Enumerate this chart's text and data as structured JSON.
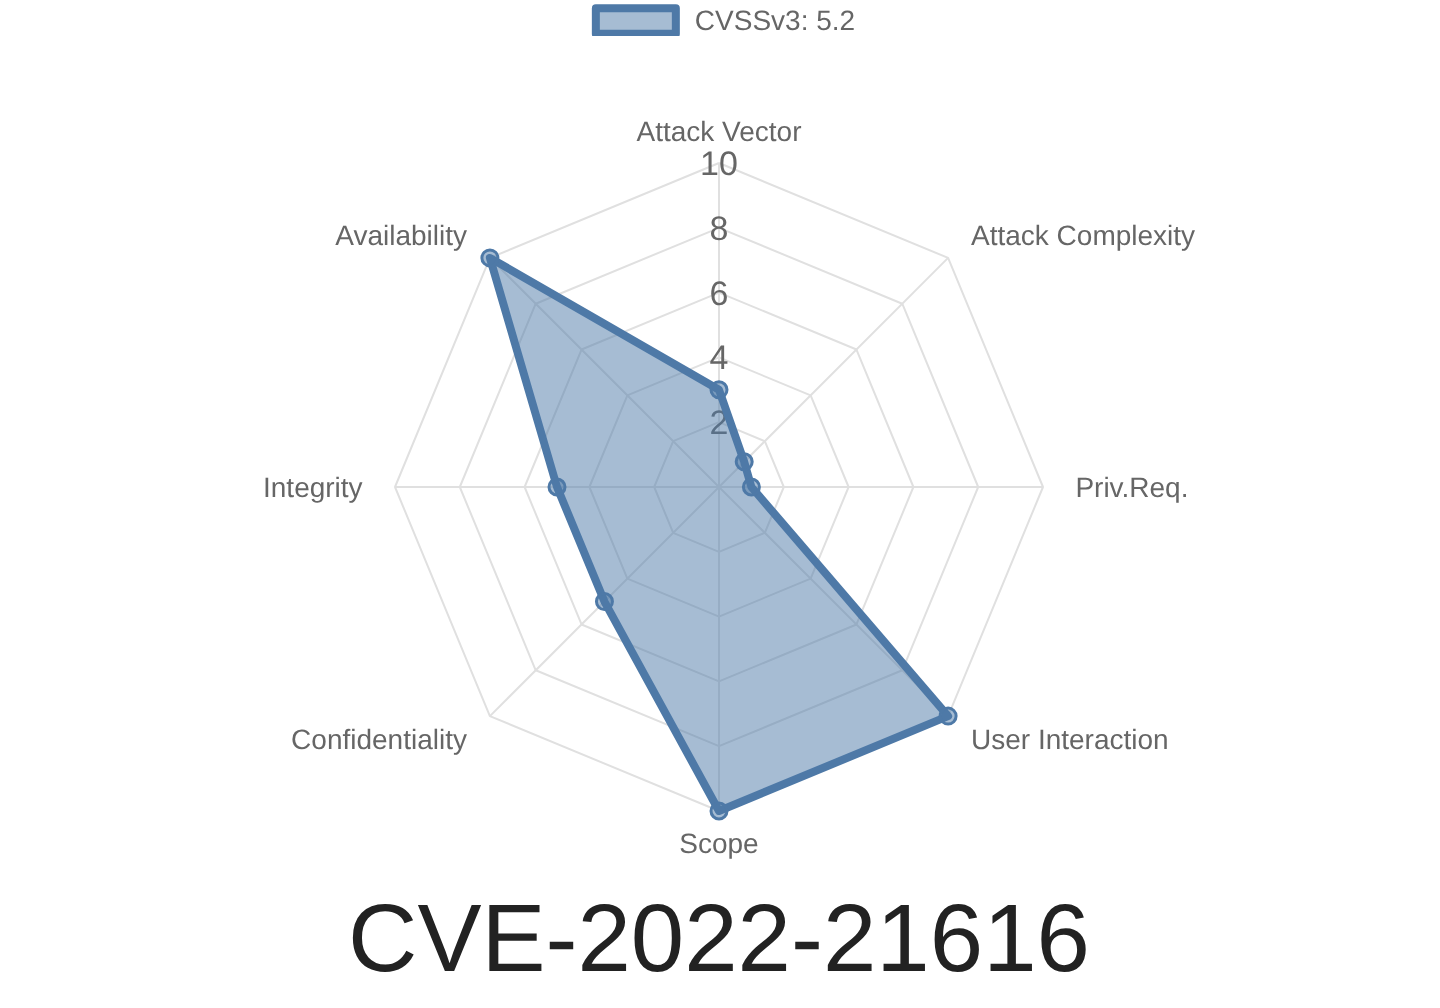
{
  "chart_data": {
    "type": "radar",
    "title": "CVE-2022-21616",
    "categories": [
      "Attack Vector",
      "Attack Complexity",
      "Priv.Req.",
      "User Interaction",
      "Scope",
      "Confidentiality",
      "Integrity",
      "Availability"
    ],
    "series": [
      {
        "name": "CVSSv3: 5.2",
        "color": "#4e79a7",
        "values": [
          3,
          1.1,
          1,
          10,
          10,
          5,
          5,
          10
        ]
      }
    ],
    "ylim": [
      0,
      10
    ],
    "yticks": [
      2,
      4,
      6,
      8,
      10
    ],
    "grid": true,
    "legend": "top",
    "marker": "circle"
  }
}
